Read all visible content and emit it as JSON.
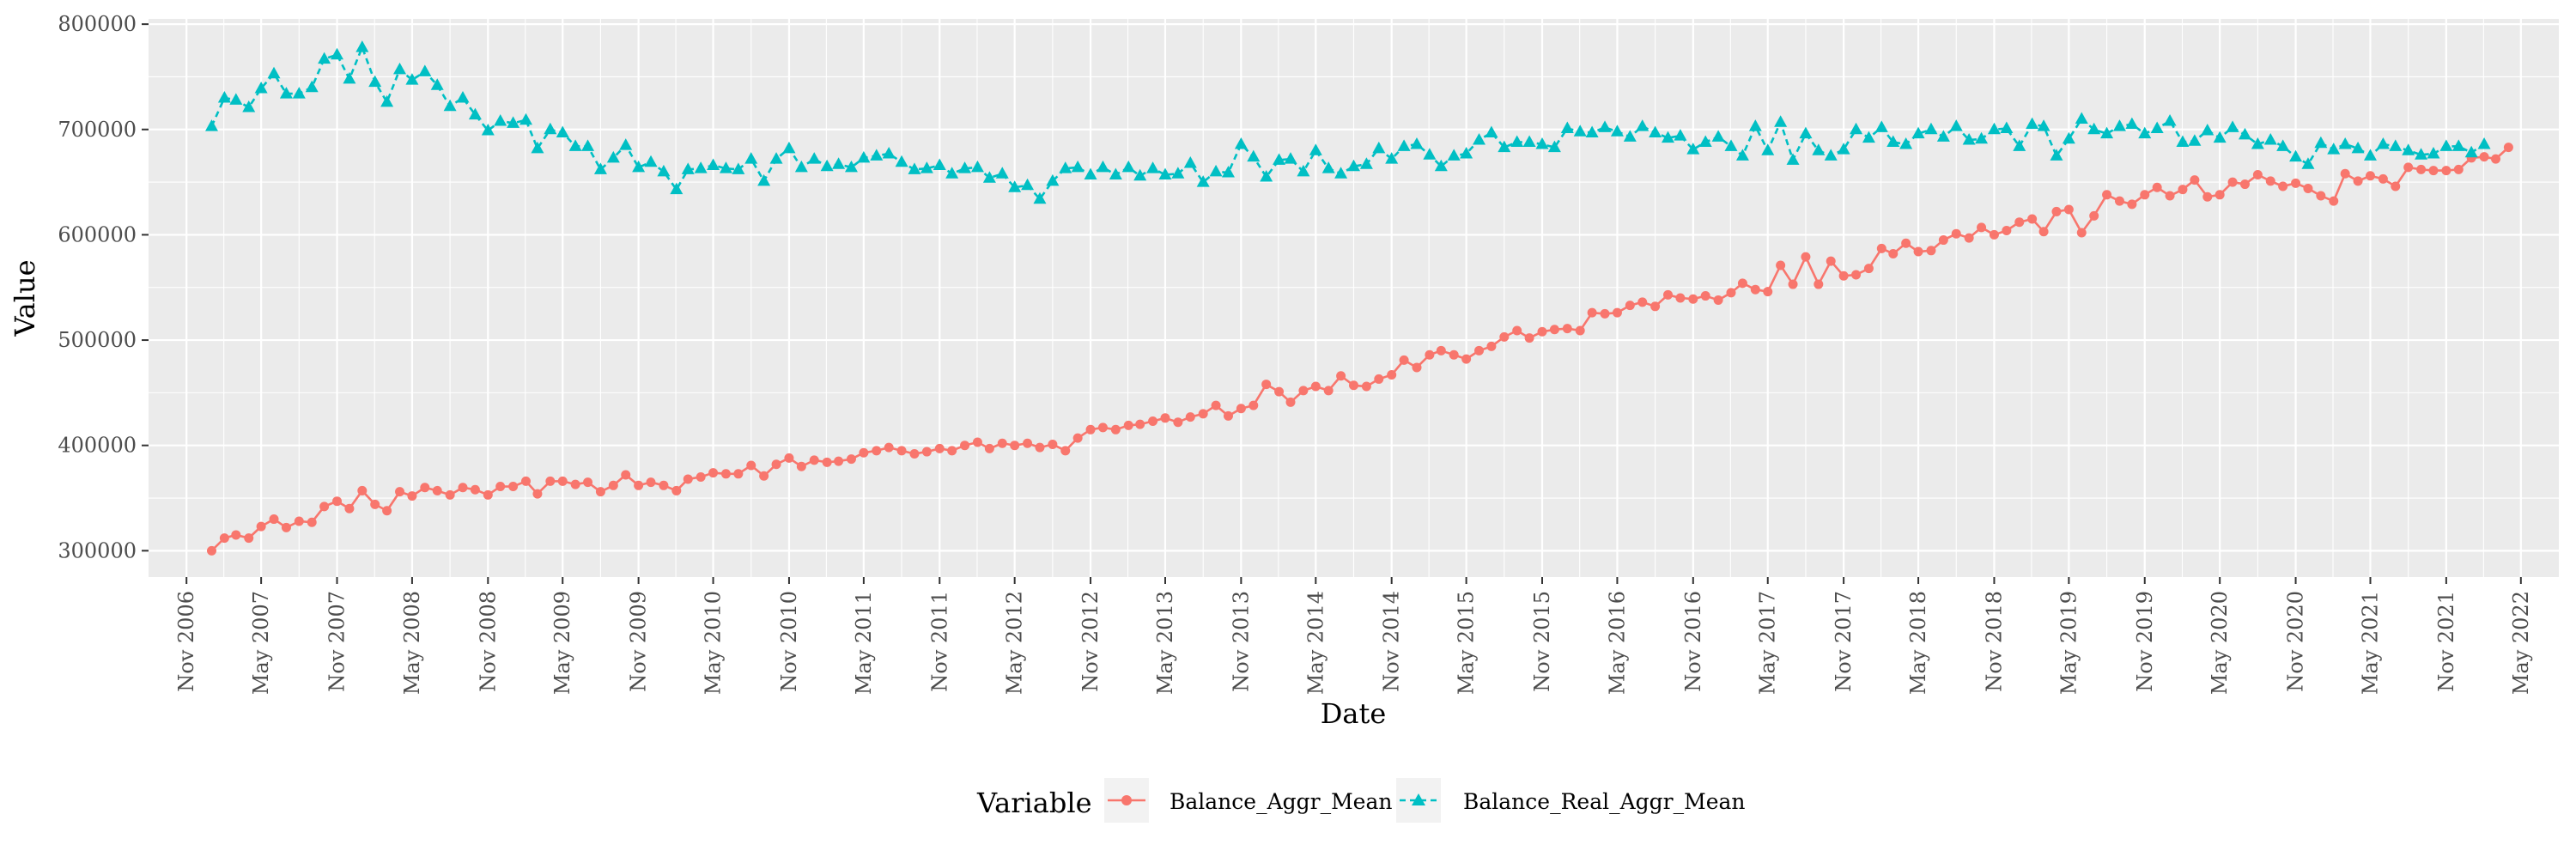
{
  "chart_data": {
    "type": "line",
    "title": "",
    "xlabel": "Date",
    "ylabel": "Value",
    "xlim": [
      "2006-08-01",
      "2022-08-01"
    ],
    "ylim": [
      275000,
      805000
    ],
    "x_tick_labels": [
      "Nov 2006",
      "May 2007",
      "Nov 2007",
      "May 2008",
      "Nov 2008",
      "May 2009",
      "Nov 2009",
      "May 2010",
      "Nov 2010",
      "May 2011",
      "Nov 2011",
      "May 2012",
      "Nov 2012",
      "May 2013",
      "Nov 2013",
      "May 2014",
      "Nov 2014",
      "May 2015",
      "Nov 2015",
      "May 2016",
      "Nov 2016",
      "May 2017",
      "Nov 2017",
      "May 2018",
      "Nov 2018",
      "May 2019",
      "Nov 2019",
      "May 2020",
      "Nov 2020",
      "May 2021",
      "Nov 2021",
      "May 2022"
    ],
    "x_tick_dates": [
      "2006-11-01",
      "2007-05-01",
      "2007-11-01",
      "2008-05-01",
      "2008-11-01",
      "2009-05-01",
      "2009-11-01",
      "2010-05-01",
      "2010-11-01",
      "2011-05-01",
      "2011-11-01",
      "2012-05-01",
      "2012-11-01",
      "2013-05-01",
      "2013-11-01",
      "2014-05-01",
      "2014-11-01",
      "2015-05-01",
      "2015-11-01",
      "2016-05-01",
      "2016-11-01",
      "2017-05-01",
      "2017-11-01",
      "2018-05-01",
      "2018-11-01",
      "2019-05-01",
      "2019-11-01",
      "2020-05-01",
      "2020-11-01",
      "2021-05-01",
      "2021-11-01",
      "2022-05-01"
    ],
    "y_ticks": [
      300000,
      400000,
      500000,
      600000,
      700000,
      800000
    ],
    "y_tick_labels": [
      "300000",
      "400000",
      "500000",
      "600000",
      "700000",
      "800000"
    ],
    "x_start": "2007-01",
    "x_frequency": "monthly",
    "grid": true,
    "legend": {
      "title": "Variable",
      "position": "bottom"
    },
    "series": [
      {
        "name": "Balance_Aggr_Mean",
        "color": "#F8766D",
        "marker": "circle",
        "line": "solid",
        "values": [
          300000,
          312000,
          315000,
          312000,
          323000,
          330000,
          322000,
          328000,
          327000,
          342000,
          347000,
          340000,
          357000,
          344000,
          338000,
          356000,
          352000,
          360000,
          357000,
          353000,
          360000,
          358000,
          353000,
          361000,
          361000,
          366000,
          354000,
          366000,
          366000,
          363000,
          365000,
          356000,
          362000,
          372000,
          362000,
          365000,
          362000,
          357000,
          368000,
          370000,
          374000,
          373000,
          373000,
          381000,
          371000,
          382000,
          388000,
          380000,
          386000,
          384000,
          385000,
          387000,
          393000,
          395000,
          398000,
          395000,
          392000,
          394000,
          397000,
          395000,
          400000,
          403000,
          397000,
          402000,
          400000,
          402000,
          398000,
          401000,
          395000,
          407000,
          415000,
          417000,
          415000,
          419000,
          420000,
          423000,
          426000,
          422000,
          427000,
          430000,
          438000,
          428000,
          435000,
          438000,
          458000,
          451000,
          441000,
          452000,
          456000,
          452000,
          466000,
          457000,
          456000,
          463000,
          467000,
          481000,
          474000,
          486000,
          490000,
          486000,
          482000,
          490000,
          494000,
          503000,
          509000,
          502000,
          508000,
          510000,
          511000,
          509000,
          526000,
          525000,
          526000,
          533000,
          536000,
          532000,
          543000,
          540000,
          539000,
          542000,
          538000,
          545000,
          554000,
          548000,
          546000,
          571000,
          553000,
          579000,
          553000,
          575000,
          561000,
          562000,
          568000,
          587000,
          582000,
          592000,
          584000,
          585000,
          595000,
          601000,
          597000,
          607000,
          600000,
          604000,
          612000,
          615000,
          603000,
          622000,
          624000,
          602000,
          618000,
          638000,
          632000,
          629000,
          638000,
          645000,
          637000,
          643000,
          652000,
          636000,
          638000,
          650000,
          648000,
          657000,
          651000,
          646000,
          649000,
          644000,
          637000,
          632000,
          658000,
          651000,
          656000,
          653000,
          646000,
          664000,
          662000,
          661000,
          661000,
          662000,
          673000,
          674000,
          672000,
          683000
        ]
      },
      {
        "name": "Balance_Real_Aggr_Mean",
        "color": "#00BFC4",
        "marker": "triangle",
        "line": "dashed",
        "values": [
          703000,
          730000,
          728000,
          721000,
          739000,
          753000,
          734000,
          734000,
          740000,
          767000,
          771000,
          748000,
          778000,
          745000,
          726000,
          757000,
          747000,
          755000,
          742000,
          722000,
          730000,
          714000,
          699000,
          708000,
          706000,
          709000,
          682000,
          700000,
          697000,
          684000,
          684000,
          662000,
          673000,
          685000,
          664000,
          669000,
          660000,
          643000,
          662000,
          663000,
          666000,
          663000,
          662000,
          672000,
          651000,
          672000,
          682000,
          664000,
          672000,
          665000,
          667000,
          664000,
          673000,
          675000,
          677000,
          669000,
          662000,
          663000,
          666000,
          658000,
          663000,
          664000,
          654000,
          658000,
          645000,
          647000,
          634000,
          651000,
          663000,
          664000,
          657000,
          664000,
          657000,
          664000,
          656000,
          663000,
          657000,
          658000,
          668000,
          650000,
          660000,
          659000,
          686000,
          674000,
          655000,
          671000,
          672000,
          660000,
          680000,
          663000,
          658000,
          665000,
          667000,
          682000,
          672000,
          684000,
          686000,
          676000,
          665000,
          675000,
          677000,
          690000,
          697000,
          683000,
          688000,
          688000,
          686000,
          683000,
          701000,
          698000,
          697000,
          702000,
          698000,
          693000,
          703000,
          697000,
          692000,
          694000,
          681000,
          688000,
          693000,
          684000,
          675000,
          703000,
          680000,
          707000,
          671000,
          696000,
          680000,
          675000,
          681000,
          700000,
          692000,
          702000,
          688000,
          686000,
          696000,
          700000,
          693000,
          703000,
          690000,
          691000,
          700000,
          701000,
          684000,
          705000,
          703000,
          675000,
          691000,
          710000,
          700000,
          696000,
          703000,
          705000,
          696000,
          701000,
          708000,
          688000,
          689000,
          699000,
          692000,
          702000,
          695000,
          686000,
          690000,
          684000,
          674000,
          667000,
          687000,
          681000,
          686000,
          682000,
          675000,
          686000,
          684000,
          680000,
          676000,
          677000,
          684000,
          684000,
          678000,
          686000
        ]
      }
    ]
  }
}
